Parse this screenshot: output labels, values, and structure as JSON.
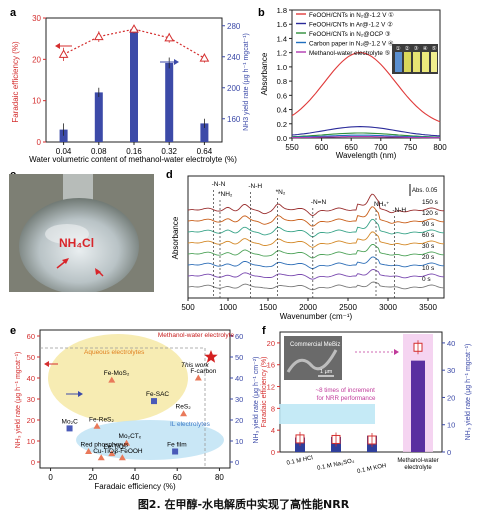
{
  "caption": "图2. 在甲醇-水电解质中实现了高性能NRR",
  "chart_data": [
    {
      "panel": "a",
      "type": "bar+line",
      "xlabel": "Water volumetric content of methanol-water electrolyte (%)",
      "categories": [
        "0.04",
        "0.08",
        "0.16",
        "0.32",
        "0.64"
      ],
      "y_left": {
        "label": "Faradaic efficiency (%)",
        "ticks": [
          "0",
          "10",
          "20",
          "30"
        ],
        "ylim": [
          0,
          30
        ]
      },
      "y_right": {
        "label": "NH3 yield rate (μg h⁻¹ mgcat⁻¹)",
        "ticks": [
          "160",
          "200",
          "240",
          "280"
        ],
        "ylim": [
          130,
          290
        ]
      },
      "series": [
        {
          "name": "Faradaic efficiency",
          "axis": "left",
          "type": "line",
          "color": "#d42e2e",
          "values": [
            21.2,
            25.5,
            27.3,
            25.2,
            20.3
          ],
          "err": [
            1.6,
            1.3,
            1.0,
            1.2,
            1.1
          ]
        },
        {
          "name": "NH3 yield rate",
          "axis": "right",
          "type": "bar",
          "color": "#3c4aa8",
          "values": [
            146,
            194,
            275,
            232,
            154
          ],
          "err": [
            8,
            6,
            5,
            7,
            6
          ]
        }
      ]
    },
    {
      "panel": "b",
      "type": "line",
      "xlabel": "Wavelength (nm)",
      "ylabel": "Absorbance",
      "xlim": [
        550,
        800
      ],
      "ylim": [
        0,
        1.8
      ],
      "xticks": [
        "550",
        "600",
        "650",
        "700",
        "750",
        "800"
      ],
      "yticks": [
        "0.0",
        "0.2",
        "0.4",
        "0.6",
        "0.8",
        "1.0",
        "1.2",
        "1.4",
        "1.6",
        "1.8"
      ],
      "series": [
        {
          "name": "FeOOH/CNTs in N₂@-1.2 V",
          "marker": "①",
          "color": "#e03a3a",
          "peak": 1.2
        },
        {
          "name": "FeOOH/CNTs in Ar@-1.2 V",
          "marker": "②",
          "color": "#2a2a9a",
          "peak": 0.16
        },
        {
          "name": "FeOOH/CNTs in N₂@OCP",
          "marker": "③",
          "color": "#2f8f3a",
          "peak": 0.07
        },
        {
          "name": "Carbon paper in N₂@-1.2 V",
          "marker": "④",
          "color": "#1f6fbf",
          "peak": 0.04
        },
        {
          "name": "Methanol-water electrolyte",
          "marker": "⑤",
          "color": "#b03ab0",
          "peak": 0.02
        }
      ],
      "vial_labels": [
        "①",
        "②",
        "③",
        "④",
        "⑤"
      ]
    },
    {
      "panel": "d",
      "type": "line",
      "xlabel": "Wavenumber (cm⁻¹)",
      "ylabel": "Absorbance",
      "xlim": [
        500,
        3700
      ],
      "xticks": [
        "500",
        "1000",
        "1500",
        "2000",
        "2500",
        "3000",
        "3500"
      ],
      "scale_bar": "Abs. 0.05",
      "series_times": [
        "150 s",
        "120 s",
        "90 s",
        "60 s",
        "30 s",
        "20 s",
        "10 s",
        "0 s"
      ],
      "colors": [
        "#9a2f2f",
        "#c95f1a",
        "#3ba58a",
        "#d48a2a",
        "#4fa35a",
        "#2f6fb8",
        "#7a4ab0",
        "#7a7a7a"
      ],
      "annotations": [
        "-N-N",
        "*NH₂",
        "-N-H",
        "*N₂",
        "-N=N",
        "NH₄⁺",
        "-N-H"
      ]
    },
    {
      "panel": "e",
      "type": "scatter",
      "xlabel": "Faradaic efficiency (%)",
      "y_left": {
        "label": "NH₃ yield rate (μg h⁻¹ mgcat⁻¹)",
        "ticks": [
          "0",
          "10",
          "20",
          "30",
          "40",
          "50",
          "60"
        ],
        "ylim": [
          0,
          60
        ]
      },
      "y_right": {
        "label": "NH₃ yield rate (μg h⁻¹ cm⁻²)",
        "ticks": [
          "0",
          "10",
          "20",
          "30",
          "40",
          "50",
          "60"
        ]
      },
      "xticks": [
        "0",
        "20",
        "40",
        "60",
        "80"
      ],
      "xlim": [
        -5,
        85
      ],
      "groups": {
        "aqueous": "Aqueous electrolytes",
        "il": "IL electrolytes",
        "this": "Methanol-water electrolyte"
      },
      "this_work_label": "This work",
      "points": [
        {
          "label": "Fe-MoS₂",
          "x": 29,
          "y": 39,
          "marker": "triangle"
        },
        {
          "label": "F-carbon",
          "x": 70,
          "y": 40,
          "marker": "triangle"
        },
        {
          "label": "Fe-SAC",
          "x": 49,
          "y": 29,
          "marker": "square"
        },
        {
          "label": "ReS₂",
          "x": 63,
          "y": 23,
          "marker": "triangle"
        },
        {
          "label": "Mo₂C",
          "x": 9,
          "y": 16,
          "marker": "square"
        },
        {
          "label": "Fe-ReS₂",
          "x": 22,
          "y": 17,
          "marker": "triangle"
        },
        {
          "label": "Mo₂CTₓ",
          "x": 36,
          "y": 9,
          "marker": "triangle"
        },
        {
          "label": "Red phosphorus",
          "x": 18,
          "y": 5,
          "marker": "triangle"
        },
        {
          "label": "Fe-TiO₂",
          "x": 29,
          "y": 4,
          "marker": "triangle"
        },
        {
          "label": "Cu-TiO₂",
          "x": 24,
          "y": 2,
          "marker": "triangle"
        },
        {
          "label": "β-FeOOH",
          "x": 34,
          "y": 2,
          "marker": "triangle"
        },
        {
          "label": "Fe film",
          "x": 59,
          "y": 5,
          "marker": "square"
        },
        {
          "label": "This work",
          "x": 76,
          "y": 50,
          "marker": "star"
        }
      ]
    },
    {
      "panel": "f",
      "type": "bar",
      "categories": [
        "0.1 M HCl",
        "0.1 M Na₂SO₄",
        "0.1 M KOH",
        "Methanol-water electrolyte"
      ],
      "y_left": {
        "label": "Faradaic efficiency (%)",
        "ticks": [
          "0",
          "4",
          "8",
          "12",
          "16",
          "20"
        ],
        "ylim": [
          0,
          22
        ]
      },
      "y_right": {
        "label": "NH₃ yield rate (μg h⁻¹ mgcat⁻¹)",
        "ticks": [
          "0",
          "10",
          "20",
          "30",
          "40"
        ],
        "ylim": [
          0,
          44
        ]
      },
      "faradaic": [
        2.4,
        2.3,
        2.2,
        19.2
      ],
      "yield": [
        5.3,
        5.5,
        6.0,
        33.5
      ],
      "annotation": "~8 times of increment for NRR performance",
      "inset_label": "Commercial MeBiz",
      "inset_scale": "1 μm"
    }
  ],
  "panel_c": {
    "label": "NH₄Cl"
  }
}
